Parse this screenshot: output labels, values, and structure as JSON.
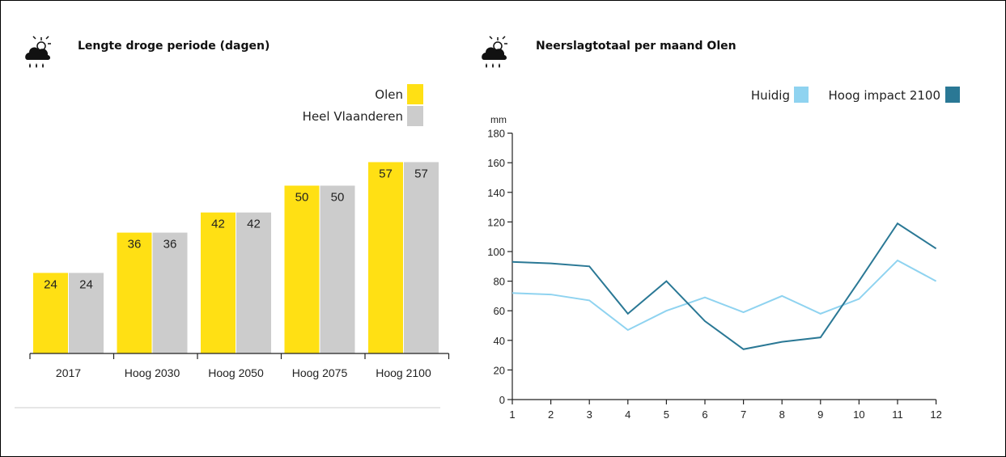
{
  "left_panel": {
    "title": "Lengte droge periode (dagen)",
    "icon": "cloud-sun-rain-icon"
  },
  "right_panel": {
    "title": "Neerslagtotaal per maand Olen",
    "icon": "cloud-sun-rain-icon"
  },
  "chart_data": [
    {
      "type": "bar",
      "title": "Lengte droge periode (dagen)",
      "categories": [
        "2017",
        "Hoog 2030",
        "Hoog 2050",
        "Hoog 2075",
        "Hoog 2100"
      ],
      "series": [
        {
          "name": "Olen",
          "color": "#ffe014",
          "values": [
            24,
            36,
            42,
            50,
            57
          ]
        },
        {
          "name": "Heel Vlaanderen",
          "color": "#cccccc",
          "values": [
            24,
            36,
            42,
            50,
            57
          ]
        }
      ],
      "ylim": [
        0,
        70
      ],
      "legend_position": "top-right",
      "grid": false
    },
    {
      "type": "line",
      "title": "Neerslagtotaal per maand Olen",
      "ylabel": "mm",
      "x": [
        1,
        2,
        3,
        4,
        5,
        6,
        7,
        8,
        9,
        10,
        11,
        12
      ],
      "series": [
        {
          "name": "Huidig",
          "color": "#8fd3f0",
          "values": [
            72,
            71,
            67,
            47,
            60,
            69,
            59,
            70,
            58,
            68,
            94,
            80
          ]
        },
        {
          "name": "Hoog impact 2100",
          "color": "#2a7895",
          "values": [
            93,
            92,
            90,
            58,
            80,
            53,
            34,
            39,
            42,
            80,
            119,
            102
          ]
        }
      ],
      "ylim": [
        0,
        180
      ],
      "yticks": [
        0,
        20,
        40,
        60,
        80,
        100,
        120,
        140,
        160,
        180
      ],
      "legend_position": "top-right",
      "grid": false
    }
  ]
}
